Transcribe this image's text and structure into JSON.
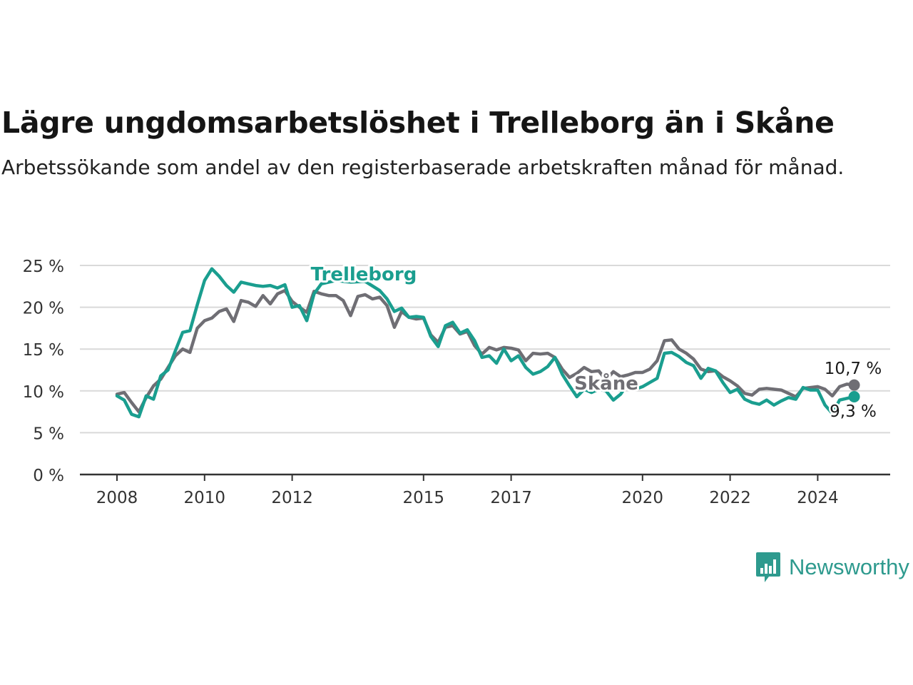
{
  "title": "Lägre ungdomsarbetslöshet i Trelleborg än i Skåne",
  "subtitle": "Arbetssökande som andel av den registerbaserade arbetskraften månad för månad.",
  "brand": {
    "name": "Newsworthy",
    "color": "#2e9a8e"
  },
  "chart_data": {
    "type": "line",
    "x_unit": "date",
    "ylim": [
      0,
      25
    ],
    "y_ticks": [
      0,
      5,
      10,
      15,
      20,
      25
    ],
    "y_tick_labels": [
      "0 %",
      "5 %",
      "10 %",
      "15 %",
      "20 %",
      "25 %"
    ],
    "x_ticks": [
      "2008-01",
      "2010-01",
      "2012-01",
      "2015-01",
      "2017-01",
      "2020-01",
      "2022-01",
      "2024-01"
    ],
    "x_tick_labels": [
      "2008",
      "2010",
      "2012",
      "2015",
      "2017",
      "2020",
      "2022",
      "2024"
    ],
    "grid": true,
    "series": [
      {
        "name": "Trelleborg",
        "color": "#1a9e8f",
        "end_label": "9,3 %",
        "points": [
          [
            "2008-01",
            9.4
          ],
          [
            "2008-03",
            8.9
          ],
          [
            "2008-05",
            7.2
          ],
          [
            "2008-07",
            6.9
          ],
          [
            "2008-09",
            9.4
          ],
          [
            "2008-11",
            9.0
          ],
          [
            "2009-01",
            11.8
          ],
          [
            "2009-03",
            12.5
          ],
          [
            "2009-05",
            14.8
          ],
          [
            "2009-07",
            17.0
          ],
          [
            "2009-09",
            17.2
          ],
          [
            "2009-11",
            20.3
          ],
          [
            "2010-01",
            23.2
          ],
          [
            "2010-03",
            24.6
          ],
          [
            "2010-05",
            23.7
          ],
          [
            "2010-07",
            22.6
          ],
          [
            "2010-09",
            21.8
          ],
          [
            "2010-11",
            23.0
          ],
          [
            "2011-01",
            22.8
          ],
          [
            "2011-03",
            22.6
          ],
          [
            "2011-05",
            22.5
          ],
          [
            "2011-07",
            22.6
          ],
          [
            "2011-09",
            22.3
          ],
          [
            "2011-11",
            22.7
          ],
          [
            "2012-01",
            20.0
          ],
          [
            "2012-03",
            20.2
          ],
          [
            "2012-05",
            18.4
          ],
          [
            "2012-07",
            21.6
          ],
          [
            "2012-09",
            22.8
          ],
          [
            "2013-01",
            23.2
          ],
          [
            "2013-05",
            23.0
          ],
          [
            "2013-09",
            23.1
          ],
          [
            "2014-01",
            22.0
          ],
          [
            "2014-03",
            21.0
          ],
          [
            "2014-05",
            19.5
          ],
          [
            "2014-07",
            19.9
          ],
          [
            "2014-09",
            18.8
          ],
          [
            "2014-11",
            18.9
          ],
          [
            "2015-01",
            18.8
          ],
          [
            "2015-03",
            16.5
          ],
          [
            "2015-05",
            15.3
          ],
          [
            "2015-07",
            17.8
          ],
          [
            "2015-09",
            18.2
          ],
          [
            "2015-11",
            16.9
          ],
          [
            "2016-01",
            17.3
          ],
          [
            "2016-03",
            16.0
          ],
          [
            "2016-05",
            14.0
          ],
          [
            "2016-07",
            14.2
          ],
          [
            "2016-09",
            13.3
          ],
          [
            "2016-11",
            15.0
          ],
          [
            "2017-01",
            13.6
          ],
          [
            "2017-03",
            14.2
          ],
          [
            "2017-05",
            12.8
          ],
          [
            "2017-07",
            12.0
          ],
          [
            "2017-09",
            12.3
          ],
          [
            "2017-11",
            12.9
          ],
          [
            "2018-01",
            14.0
          ],
          [
            "2018-03",
            12.0
          ],
          [
            "2018-05",
            10.6
          ],
          [
            "2018-07",
            9.3
          ],
          [
            "2018-09",
            10.2
          ],
          [
            "2018-11",
            9.8
          ],
          [
            "2019-01",
            10.2
          ],
          [
            "2019-03",
            10.0
          ],
          [
            "2019-05",
            8.9
          ],
          [
            "2019-07",
            9.6
          ],
          [
            "2019-09",
            10.9
          ],
          [
            "2019-11",
            10.2
          ],
          [
            "2020-01",
            10.5
          ],
          [
            "2020-03",
            11.0
          ],
          [
            "2020-05",
            11.5
          ],
          [
            "2020-07",
            14.5
          ],
          [
            "2020-09",
            14.6
          ],
          [
            "2020-11",
            14.1
          ],
          [
            "2021-01",
            13.4
          ],
          [
            "2021-03",
            13.0
          ],
          [
            "2021-05",
            11.5
          ],
          [
            "2021-07",
            12.7
          ],
          [
            "2021-09",
            12.4
          ],
          [
            "2021-11",
            11.0
          ],
          [
            "2022-01",
            9.8
          ],
          [
            "2022-03",
            10.2
          ],
          [
            "2022-05",
            9.0
          ],
          [
            "2022-07",
            8.6
          ],
          [
            "2022-09",
            8.4
          ],
          [
            "2022-11",
            8.9
          ],
          [
            "2023-01",
            8.3
          ],
          [
            "2023-03",
            8.8
          ],
          [
            "2023-05",
            9.2
          ],
          [
            "2023-07",
            9.0
          ],
          [
            "2023-09",
            10.4
          ],
          [
            "2023-11",
            10.1
          ],
          [
            "2024-01",
            10.1
          ],
          [
            "2024-03",
            8.3
          ],
          [
            "2024-05",
            7.3
          ],
          [
            "2024-07",
            8.9
          ],
          [
            "2024-09",
            9.1
          ],
          [
            "2024-11",
            9.3
          ]
        ]
      },
      {
        "name": "Skåne",
        "color": "#6f6e74",
        "end_label": "10,7 %",
        "points": [
          [
            "2008-01",
            9.6
          ],
          [
            "2008-03",
            9.8
          ],
          [
            "2008-05",
            8.6
          ],
          [
            "2008-07",
            7.5
          ],
          [
            "2008-09",
            9.2
          ],
          [
            "2008-11",
            10.6
          ],
          [
            "2009-01",
            11.4
          ],
          [
            "2009-03",
            12.8
          ],
          [
            "2009-05",
            14.2
          ],
          [
            "2009-07",
            15.0
          ],
          [
            "2009-09",
            14.6
          ],
          [
            "2009-11",
            17.5
          ],
          [
            "2010-01",
            18.4
          ],
          [
            "2010-03",
            18.7
          ],
          [
            "2010-05",
            19.5
          ],
          [
            "2010-07",
            19.8
          ],
          [
            "2010-09",
            18.3
          ],
          [
            "2010-11",
            20.8
          ],
          [
            "2011-01",
            20.6
          ],
          [
            "2011-03",
            20.1
          ],
          [
            "2011-05",
            21.4
          ],
          [
            "2011-07",
            20.4
          ],
          [
            "2011-09",
            21.6
          ],
          [
            "2011-11",
            22.0
          ],
          [
            "2012-01",
            20.7
          ],
          [
            "2012-03",
            20.0
          ],
          [
            "2012-05",
            19.4
          ],
          [
            "2012-07",
            21.9
          ],
          [
            "2012-09",
            21.6
          ],
          [
            "2012-11",
            21.4
          ],
          [
            "2013-01",
            21.4
          ],
          [
            "2013-03",
            20.8
          ],
          [
            "2013-05",
            19.0
          ],
          [
            "2013-07",
            21.3
          ],
          [
            "2013-09",
            21.5
          ],
          [
            "2013-11",
            21.0
          ],
          [
            "2014-01",
            21.2
          ],
          [
            "2014-03",
            20.2
          ],
          [
            "2014-05",
            17.6
          ],
          [
            "2014-07",
            19.5
          ],
          [
            "2014-09",
            18.8
          ],
          [
            "2014-11",
            18.6
          ],
          [
            "2015-01",
            18.7
          ],
          [
            "2015-03",
            16.7
          ],
          [
            "2015-05",
            15.8
          ],
          [
            "2015-07",
            17.6
          ],
          [
            "2015-09",
            17.8
          ],
          [
            "2015-11",
            16.8
          ],
          [
            "2016-01",
            17.1
          ],
          [
            "2016-03",
            15.4
          ],
          [
            "2016-05",
            14.4
          ],
          [
            "2016-07",
            15.2
          ],
          [
            "2016-09",
            14.9
          ],
          [
            "2016-11",
            15.2
          ],
          [
            "2017-01",
            15.1
          ],
          [
            "2017-03",
            14.9
          ],
          [
            "2017-05",
            13.6
          ],
          [
            "2017-07",
            14.5
          ],
          [
            "2017-09",
            14.4
          ],
          [
            "2017-11",
            14.5
          ],
          [
            "2018-01",
            14.0
          ],
          [
            "2018-03",
            12.6
          ],
          [
            "2018-05",
            11.6
          ],
          [
            "2018-07",
            12.1
          ],
          [
            "2018-09",
            12.8
          ],
          [
            "2018-11",
            12.3
          ],
          [
            "2019-01",
            12.4
          ],
          [
            "2019-03",
            11.3
          ],
          [
            "2019-05",
            12.3
          ],
          [
            "2019-07",
            11.7
          ],
          [
            "2019-09",
            11.9
          ],
          [
            "2019-11",
            12.2
          ],
          [
            "2020-01",
            12.2
          ],
          [
            "2020-03",
            12.6
          ],
          [
            "2020-05",
            13.6
          ],
          [
            "2020-07",
            16.0
          ],
          [
            "2020-09",
            16.1
          ],
          [
            "2020-11",
            15.0
          ],
          [
            "2021-01",
            14.5
          ],
          [
            "2021-03",
            13.8
          ],
          [
            "2021-05",
            12.6
          ],
          [
            "2021-07",
            12.3
          ],
          [
            "2021-09",
            12.4
          ],
          [
            "2021-11",
            11.7
          ],
          [
            "2022-01",
            11.2
          ],
          [
            "2022-03",
            10.6
          ],
          [
            "2022-05",
            9.7
          ],
          [
            "2022-07",
            9.5
          ],
          [
            "2022-09",
            10.2
          ],
          [
            "2022-11",
            10.3
          ],
          [
            "2023-01",
            10.2
          ],
          [
            "2023-03",
            10.1
          ],
          [
            "2023-05",
            9.7
          ],
          [
            "2023-07",
            9.3
          ],
          [
            "2023-09",
            10.3
          ],
          [
            "2023-11",
            10.4
          ],
          [
            "2024-01",
            10.5
          ],
          [
            "2024-03",
            10.2
          ],
          [
            "2024-05",
            9.4
          ],
          [
            "2024-07",
            10.5
          ],
          [
            "2024-09",
            10.8
          ],
          [
            "2024-11",
            10.7
          ]
        ]
      }
    ]
  }
}
